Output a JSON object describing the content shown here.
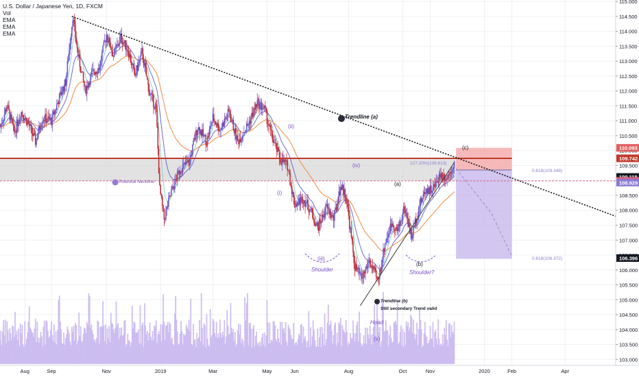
{
  "header": {
    "title": "U.S. Dollar / Japanese Yen, 1D, FXCM",
    "indicators": [
      "Vol",
      "EMA",
      "EMA",
      "EMA"
    ]
  },
  "colors": {
    "up": "#6a5acd",
    "down": "#c0303a",
    "volume": "#c9b8f0",
    "ema_fast": "#8fd0c0",
    "ema_mid": "#6a6ad0",
    "ema_slow": "#f08a40",
    "resistance": "#c0392b",
    "annotation": "#7b52c8",
    "zone_red": "#f4a8a8",
    "zone_purple": "#c8b8ec",
    "zone_grey": "#d8d8d8",
    "trendline": "#111111"
  },
  "chart_data": {
    "type": "candlestick",
    "symbol": "U.S. Dollar / Japanese Yen",
    "timeframe": "1D",
    "source": "FXCM",
    "x_labels": [
      "Aug",
      "Sep",
      "Nov",
      "2019",
      "Mar",
      "May",
      "Jun",
      "Aug",
      "Oct",
      "Nov",
      "2020",
      "Feb",
      "Apr"
    ],
    "x_label_days": [
      0,
      30,
      92,
      153,
      212,
      273,
      304,
      365,
      426,
      457,
      518,
      549,
      609
    ],
    "x_range_days": [
      -28,
      666
    ],
    "y_ticks": [
      103.0,
      103.5,
      104.0,
      104.5,
      105.0,
      105.5,
      106.0,
      106.5,
      107.0,
      107.5,
      108.0,
      108.5,
      109.0,
      109.5,
      110.0,
      110.5,
      111.0,
      111.5,
      112.0,
      112.5,
      113.0,
      113.5,
      114.0,
      114.5,
      115.0
    ],
    "y_tick_labels": [
      "103.000",
      "103.500",
      "104.000",
      "104.500",
      "105.000",
      "105.500",
      "106.000",
      "106.500",
      "107.000",
      "107.500",
      "108.000",
      "108.500",
      "109.000",
      "109.500",
      "110.000",
      "110.500",
      "111.000",
      "111.500",
      "112.000",
      "112.500",
      "113.000",
      "113.500",
      "114.000",
      "114.500",
      "115.000"
    ],
    "y_range": [
      102.8,
      115.05
    ],
    "price_path": [
      [
        -28,
        110.8
      ],
      [
        -20,
        111.5
      ],
      [
        -12,
        110.6
      ],
      [
        -4,
        111.3
      ],
      [
        4,
        110.9
      ],
      [
        12,
        110.3
      ],
      [
        20,
        111.1
      ],
      [
        30,
        111.0
      ],
      [
        38,
        111.7
      ],
      [
        46,
        112.3
      ],
      [
        54,
        114.5
      ],
      [
        60,
        113.2
      ],
      [
        68,
        112.0
      ],
      [
        76,
        112.6
      ],
      [
        84,
        112.8
      ],
      [
        92,
        113.9
      ],
      [
        100,
        113.2
      ],
      [
        108,
        113.8
      ],
      [
        116,
        113.4
      ],
      [
        124,
        112.5
      ],
      [
        132,
        113.3
      ],
      [
        140,
        112.0
      ],
      [
        148,
        111.4
      ],
      [
        152,
        108.7
      ],
      [
        157,
        107.7
      ],
      [
        165,
        108.6
      ],
      [
        175,
        109.4
      ],
      [
        185,
        109.6
      ],
      [
        195,
        110.8
      ],
      [
        205,
        110.3
      ],
      [
        212,
        111.1
      ],
      [
        220,
        110.7
      ],
      [
        230,
        111.3
      ],
      [
        240,
        110.3
      ],
      [
        252,
        110.9
      ],
      [
        262,
        111.6
      ],
      [
        270,
        111.4
      ],
      [
        278,
        110.5
      ],
      [
        288,
        109.7
      ],
      [
        296,
        109.5
      ],
      [
        304,
        108.2
      ],
      [
        314,
        108.4
      ],
      [
        322,
        108.0
      ],
      [
        330,
        107.4
      ],
      [
        340,
        108.1
      ],
      [
        348,
        107.7
      ],
      [
        356,
        108.8
      ],
      [
        362,
        108.5
      ],
      [
        372,
        106.1
      ],
      [
        380,
        105.7
      ],
      [
        388,
        106.3
      ],
      [
        398,
        105.6
      ],
      [
        406,
        106.9
      ],
      [
        414,
        107.6
      ],
      [
        420,
        107.3
      ],
      [
        428,
        108.1
      ],
      [
        436,
        107.1
      ],
      [
        444,
        108.1
      ],
      [
        452,
        108.7
      ],
      [
        460,
        108.7
      ],
      [
        468,
        109.2
      ],
      [
        476,
        109.1
      ],
      [
        484,
        109.6
      ]
    ],
    "volume_range": [
      0,
      100
    ],
    "annotations": [
      {
        "text": "Trendline (a)"
      },
      {
        "text": "Potential Neckline"
      },
      {
        "text": "Trendline (b)"
      },
      {
        "text": "Still secondary Trend valid"
      },
      {
        "text": "(ii)"
      },
      {
        "text": "(i)"
      },
      {
        "text": "(iii)"
      },
      {
        "text": "(iv)"
      },
      {
        "text": "(v)"
      },
      {
        "text": "(a)"
      },
      {
        "text": "(b)"
      },
      {
        "text": "(c)"
      },
      {
        "text": "Shoulder"
      },
      {
        "text": "Head"
      },
      {
        "text": "Shoulder?"
      },
      {
        "text": "127.20%(109.613)"
      },
      {
        "text": "0.618(109.349)"
      },
      {
        "text": "0.618(106.372)"
      }
    ],
    "price_labels": [
      {
        "value": 110.093,
        "text": "110.093",
        "color": "#e06060"
      },
      {
        "value": 109.742,
        "text": "109.742",
        "color": "#c0392b"
      },
      {
        "value": 109.118,
        "text": "109.118",
        "color": "#131722"
      },
      {
        "value": 108.984,
        "text": "108.984",
        "color": "#e0607a"
      },
      {
        "value": 108.929,
        "text": "108.929",
        "color": "#8a7ad0"
      },
      {
        "value": 106.396,
        "text": "106.396",
        "color": "#131722"
      }
    ],
    "levels": {
      "resistance": 109.742,
      "neckline": 108.984,
      "grey_zone": [
        108.984,
        109.742
      ],
      "target_red_zone": [
        109.349,
        110.093
      ],
      "target_purple_zone": [
        106.372,
        109.349
      ]
    },
    "trendline_a": [
      [
        53,
        114.5
      ],
      [
        666,
        107.8
      ]
    ],
    "trendline_b": [
      [
        378,
        104.8
      ],
      [
        484,
        109.6
      ]
    ],
    "projection": [
      [
        486,
        109.4
      ],
      [
        526,
        107.9
      ],
      [
        549,
        106.45
      ]
    ]
  }
}
